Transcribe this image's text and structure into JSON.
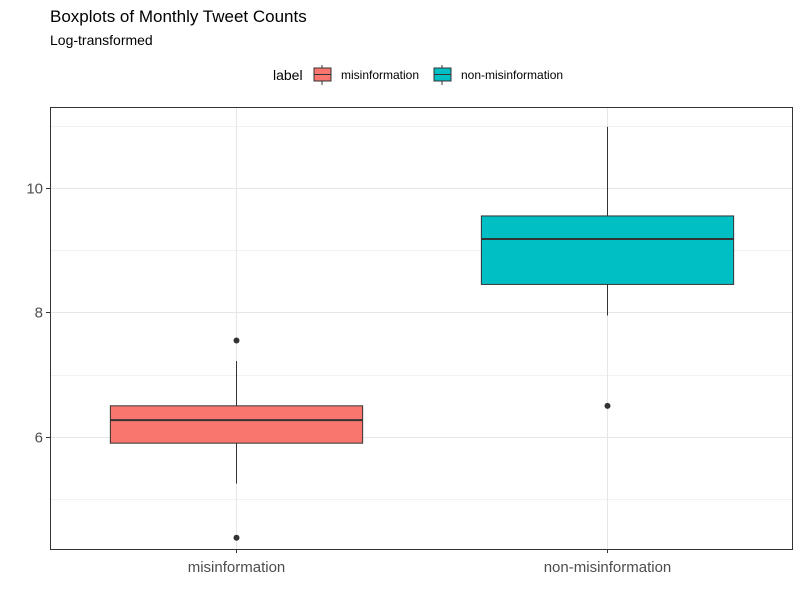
{
  "chart_data": {
    "type": "boxplot",
    "title": "Boxplots of Monthly Tweet Counts",
    "subtitle": "Log-transformed",
    "legend": {
      "title": "label",
      "position": "top",
      "entries": [
        "misinformation",
        "non-misinformation"
      ]
    },
    "categories": [
      "misinformation",
      "non-misinformation"
    ],
    "ylim": [
      4.2,
      11.3
    ],
    "y_ticks": [
      6,
      8,
      10
    ],
    "y_minor_ticks": [
      5,
      7,
      9,
      11
    ],
    "grid": true,
    "series": [
      {
        "category": "misinformation",
        "color": "#F8766D",
        "whisker_low": 5.25,
        "q1": 5.9,
        "median": 6.27,
        "q3": 6.5,
        "whisker_high": 7.22,
        "outliers": [
          7.55,
          4.38
        ]
      },
      {
        "category": "non-misinformation",
        "color": "#00BFC4",
        "whisker_low": 7.95,
        "q1": 8.45,
        "median": 9.18,
        "q3": 9.55,
        "whisker_high": 10.98,
        "outliers": [
          6.5
        ]
      }
    ]
  }
}
